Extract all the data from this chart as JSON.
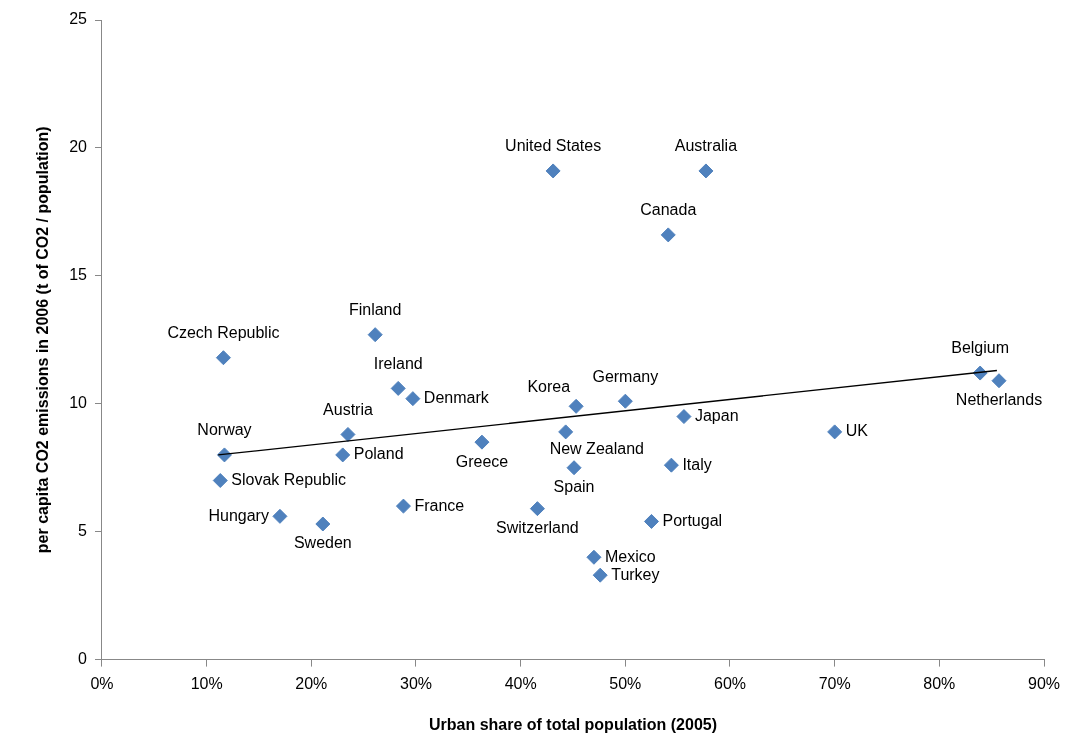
{
  "chart_data": {
    "type": "scatter",
    "xlabel": "Urban share of total population (2005)",
    "ylabel": "per capita CO2 emissions in 2006 (t of CO2 / population)",
    "xlim": [
      0,
      90
    ],
    "xticks": [
      {
        "value": 0,
        "label": "0%"
      },
      {
        "value": 10,
        "label": "10%"
      },
      {
        "value": 20,
        "label": "20%"
      },
      {
        "value": 30,
        "label": "30%"
      },
      {
        "value": 40,
        "label": "40%"
      },
      {
        "value": 50,
        "label": "50%"
      },
      {
        "value": 60,
        "label": "60%"
      },
      {
        "value": 70,
        "label": "70%"
      },
      {
        "value": 80,
        "label": "80%"
      },
      {
        "value": 90,
        "label": "90%"
      }
    ],
    "ylim": [
      0,
      25
    ],
    "yticks": [
      0,
      5,
      10,
      15,
      20,
      25
    ],
    "grid": false,
    "legend": false,
    "marker": "diamond",
    "series": [
      {
        "color": "#4f81bd",
        "x": [
          11.6,
          11.7,
          11.3,
          17.0,
          21.1,
          23.0,
          23.5,
          26.1,
          28.3,
          29.7,
          28.8,
          36.3,
          41.6,
          43.1,
          44.3,
          45.3,
          45.1,
          47.0,
          47.6,
          50.0,
          52.5,
          54.1,
          54.4,
          55.6,
          57.7,
          70.0,
          83.9,
          85.7
        ],
        "values": [
          11.8,
          8.0,
          7.0,
          5.6,
          5.3,
          8.0,
          8.8,
          12.7,
          10.6,
          10.2,
          6.0,
          8.5,
          5.9,
          19.1,
          8.9,
          9.9,
          7.5,
          4.0,
          3.3,
          10.1,
          5.4,
          16.6,
          7.6,
          9.5,
          19.1,
          8.9,
          11.2,
          10.9
        ]
      },
      {
        "type": "line",
        "color": "#000000",
        "marker": "none",
        "x": [
          11.1,
          85.5
        ],
        "values": [
          8.0,
          11.3
        ]
      }
    ],
    "annotations": [
      {
        "text": "Czech Republic",
        "x": 11.6,
        "y": 11.8
      },
      {
        "text": "Norway",
        "x": 11.7,
        "y": 8.0
      },
      {
        "text": "Slovak Republic",
        "x": 11.3,
        "y": 7.0
      },
      {
        "text": "Hungary",
        "x": 17.0,
        "y": 5.6
      },
      {
        "text": "Sweden",
        "x": 21.1,
        "y": 5.3
      },
      {
        "text": "Poland",
        "x": 23.0,
        "y": 8.0
      },
      {
        "text": "Austria",
        "x": 23.5,
        "y": 8.8
      },
      {
        "text": "Finland",
        "x": 26.1,
        "y": 12.7
      },
      {
        "text": "Ireland",
        "x": 28.3,
        "y": 10.6
      },
      {
        "text": "Denmark",
        "x": 29.7,
        "y": 10.2
      },
      {
        "text": "France",
        "x": 28.8,
        "y": 6.0
      },
      {
        "text": "Greece",
        "x": 36.3,
        "y": 8.5
      },
      {
        "text": "Switzerland",
        "x": 41.6,
        "y": 5.9
      },
      {
        "text": "United States",
        "x": 43.1,
        "y": 19.1
      },
      {
        "text": "New Zealand",
        "x": 44.3,
        "y": 8.9
      },
      {
        "text": "Korea",
        "x": 45.3,
        "y": 9.9
      },
      {
        "text": "Spain",
        "x": 45.1,
        "y": 7.5
      },
      {
        "text": "Mexico",
        "x": 47.0,
        "y": 4.0
      },
      {
        "text": "Turkey",
        "x": 47.6,
        "y": 3.3
      },
      {
        "text": "Germany",
        "x": 50.0,
        "y": 10.1
      },
      {
        "text": "Portugal",
        "x": 52.5,
        "y": 5.4
      },
      {
        "text": "Canada",
        "x": 54.1,
        "y": 16.6
      },
      {
        "text": "Italy",
        "x": 54.4,
        "y": 7.6
      },
      {
        "text": "Japan",
        "x": 55.6,
        "y": 9.5
      },
      {
        "text": "Australia",
        "x": 57.7,
        "y": 19.1
      },
      {
        "text": "UK",
        "x": 70.0,
        "y": 8.9
      },
      {
        "text": "Belgium",
        "x": 83.9,
        "y": 11.2
      },
      {
        "text": "Netherlands",
        "x": 85.7,
        "y": 10.9
      }
    ]
  }
}
